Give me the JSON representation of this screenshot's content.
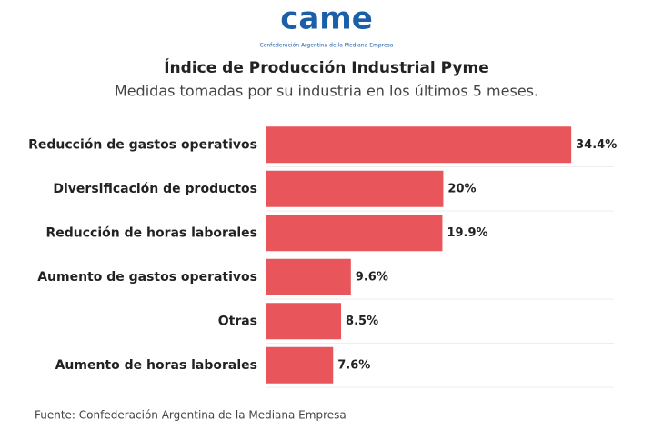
{
  "logo": {
    "text": "came",
    "caption": "Confederación Argentina de la Mediana Empresa"
  },
  "chart_data": {
    "type": "bar",
    "orientation": "horizontal",
    "title": "Índice de Producción Industrial Pyme",
    "subtitle": "Medidas tomadas por su industria en los últimos 5 meses.",
    "categories": [
      "Reducción de gastos operativos",
      "Diversificación de productos",
      "Reducción de horas laborales",
      "Aumento de gastos operativos",
      "Otras",
      "Aumento de horas laborales"
    ],
    "values": [
      34.4,
      20,
      19.9,
      9.6,
      8.5,
      7.6
    ],
    "value_labels": [
      "34.4%",
      "20%",
      "19.9%",
      "9.6%",
      "8.5%",
      "7.6%"
    ],
    "color": "#e8555a",
    "xlim": [
      0,
      35
    ],
    "source": "Fuente: Confederación Argentina de la Mediana Empresa"
  }
}
